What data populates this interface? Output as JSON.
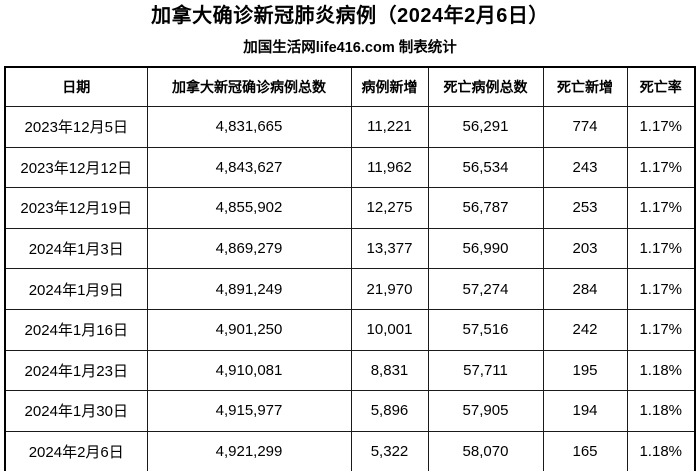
{
  "title": "加拿大确诊新冠肺炎病例（2024年2月6日）",
  "subtitle": "加国生活网life416.com 制表统计",
  "chart_data": {
    "type": "table",
    "columns": [
      "日期",
      "加拿大新冠确诊病例总数",
      "病例新增",
      "死亡病例总数",
      "死亡新增",
      "死亡率"
    ],
    "rows": [
      [
        "2023年12月5日",
        "4,831,665",
        "11,221",
        "56,291",
        "774",
        "1.17%"
      ],
      [
        "2023年12月12日",
        "4,843,627",
        "11,962",
        "56,534",
        "243",
        "1.17%"
      ],
      [
        "2023年12月19日",
        "4,855,902",
        "12,275",
        "56,787",
        "253",
        "1.17%"
      ],
      [
        "2024年1月3日",
        "4,869,279",
        "13,377",
        "56,990",
        "203",
        "1.17%"
      ],
      [
        "2024年1月9日",
        "4,891,249",
        "21,970",
        "57,274",
        "284",
        "1.17%"
      ],
      [
        "2024年1月16日",
        "4,901,250",
        "10,001",
        "57,516",
        "242",
        "1.17%"
      ],
      [
        "2024年1月23日",
        "4,910,081",
        "8,831",
        "57,711",
        "195",
        "1.18%"
      ],
      [
        "2024年1月30日",
        "4,915,977",
        "5,896",
        "57,905",
        "194",
        "1.18%"
      ],
      [
        "2024年2月6日",
        "4,921,299",
        "5,322",
        "58,070",
        "165",
        "1.18%"
      ]
    ]
  },
  "colors": {
    "background": "#ffffff",
    "text": "#000000",
    "border": "#000000"
  }
}
